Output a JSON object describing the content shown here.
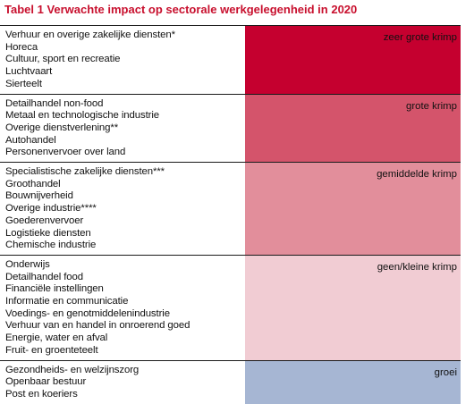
{
  "title": "Tabel 1 Verwachte impact op sectorale werkgelegenheid in 2020",
  "groups": [
    {
      "impact": "zeer grote krimp",
      "color": "#c5002f",
      "sectors": [
        "Verhuur en overige zakelijke diensten*",
        "Horeca",
        "Cultuur, sport en recreatie",
        "Luchtvaart",
        "Sierteelt"
      ]
    },
    {
      "impact": "grote krimp",
      "color": "#d4546b",
      "sectors": [
        "Detailhandel non-food",
        "Metaal en technologische industrie",
        "Overige dienstverlening**",
        "Autohandel",
        "Personenvervoer over land"
      ]
    },
    {
      "impact": "gemiddelde krimp",
      "color": "#e28e9b",
      "sectors": [
        "Specialistische zakelijke diensten***",
        "Groothandel",
        "Bouwnijverheid",
        "Overige industrie****",
        "Goederenvervoer",
        "Logistieke diensten",
        "Chemische industrie"
      ]
    },
    {
      "impact": "geen/kleine krimp",
      "color": "#f1ccd3",
      "sectors": [
        "Onderwijs",
        "Detailhandel food",
        "Financiële instellingen",
        "Informatie en communicatie",
        "Voedings- en genotmiddelenindustrie",
        "Verhuur van en handel in onroerend goed",
        "Energie, water en afval",
        "Fruit- en groenteteelt"
      ]
    },
    {
      "impact": "groei",
      "color": "#a6b6d3",
      "sectors": [
        "Gezondheids- en welzijnszorg",
        "Openbaar bestuur",
        "Post en koeriers"
      ]
    }
  ]
}
